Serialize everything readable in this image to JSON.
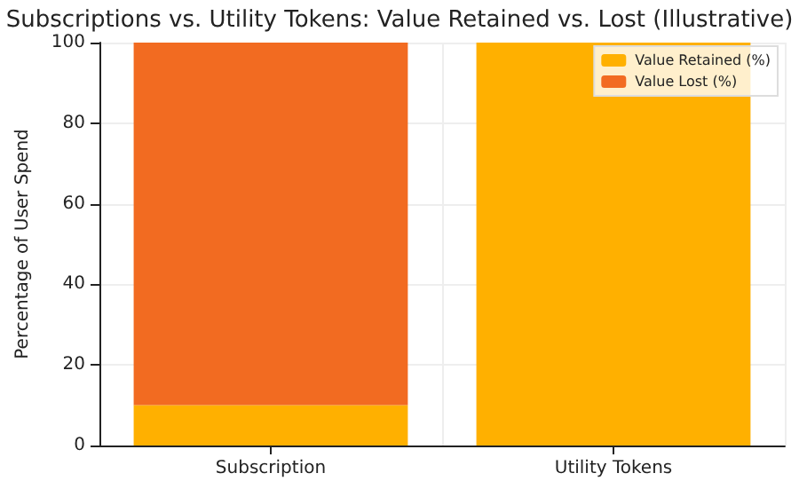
{
  "chart_data": {
    "type": "bar",
    "title": "Subscriptions vs. Utility Tokens: Value Retained vs. Lost (Illustrative)",
    "ylabel": "Percentage of User Spend",
    "categories": [
      "Subscription",
      "Utility Tokens"
    ],
    "series": [
      {
        "name": "Value Retained (%)",
        "color": "#ffb000",
        "values": [
          10,
          100
        ]
      },
      {
        "name": "Value Lost (%)",
        "color": "#f26b21",
        "values": [
          90,
          0
        ]
      }
    ],
    "stacked": true,
    "ylim": [
      0,
      100
    ],
    "yticks": [
      0,
      20,
      40,
      60,
      80,
      100
    ],
    "grid": true,
    "legend": "top right"
  }
}
